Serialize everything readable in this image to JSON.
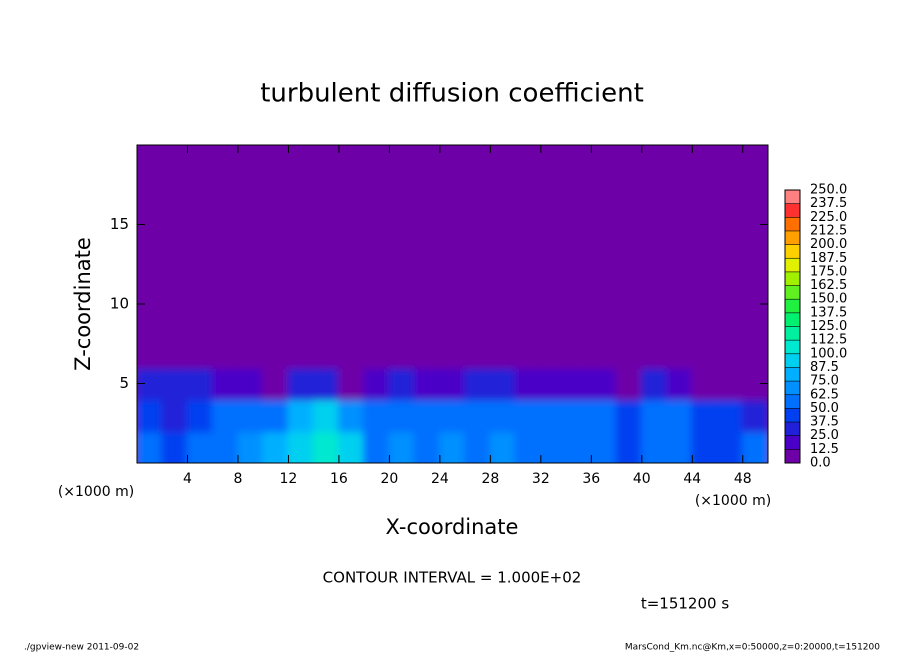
{
  "chart_data": {
    "type": "heatmap",
    "title": "turbulent diffusion coefficient",
    "xlabel": "X-coordinate",
    "ylabel": "Z-coordinate",
    "x_unit": "(×1000 m)",
    "xlim": [
      0,
      50
    ],
    "xticks": [
      4,
      8,
      12,
      16,
      20,
      24,
      28,
      32,
      36,
      40,
      44,
      48
    ],
    "ylim": [
      0,
      20
    ],
    "yticks": [
      5,
      10,
      15
    ],
    "z": [
      [
        50,
        45,
        60,
        55,
        70,
        80,
        95,
        100,
        90,
        60,
        65,
        55,
        70,
        60,
        65,
        55,
        60,
        50,
        55,
        45,
        50,
        55,
        45,
        40,
        50
      ],
      [
        40,
        35,
        45,
        50,
        60,
        55,
        75,
        90,
        70,
        50,
        55,
        55,
        60,
        55,
        60,
        55,
        55,
        50,
        55,
        45,
        50,
        50,
        45,
        40,
        35
      ],
      [
        30,
        25,
        30,
        20,
        15,
        10,
        30,
        25,
        10,
        20,
        30,
        15,
        20,
        25,
        30,
        15,
        20,
        15,
        20,
        10,
        25,
        20,
        10,
        5,
        10
      ],
      [
        0,
        0,
        0,
        10,
        0,
        0,
        0,
        0,
        0,
        0,
        0,
        5,
        0,
        0,
        0,
        0,
        0,
        0,
        0,
        0,
        0,
        0,
        0,
        0,
        0
      ],
      [
        0,
        0,
        0,
        0,
        0,
        0,
        0,
        0,
        0,
        0,
        0,
        0,
        0,
        0,
        0,
        0,
        0,
        0,
        0,
        0,
        0,
        0,
        0,
        0,
        0
      ],
      [
        0,
        0,
        0,
        0,
        0,
        0,
        0,
        0,
        0,
        0,
        0,
        0,
        0,
        0,
        0,
        0,
        0,
        0,
        0,
        0,
        0,
        0,
        0,
        0,
        0
      ],
      [
        0,
        0,
        0,
        0,
        0,
        0,
        0,
        0,
        0,
        0,
        0,
        0,
        0,
        0,
        0,
        0,
        0,
        0,
        0,
        0,
        0,
        0,
        0,
        0,
        0
      ],
      [
        0,
        0,
        0,
        0,
        0,
        0,
        0,
        0,
        0,
        0,
        0,
        0,
        0,
        0,
        0,
        0,
        0,
        0,
        0,
        0,
        0,
        0,
        0,
        0,
        0
      ],
      [
        0,
        0,
        0,
        0,
        0,
        0,
        0,
        0,
        0,
        0,
        0,
        0,
        0,
        0,
        0,
        0,
        0,
        0,
        0,
        0,
        0,
        0,
        0,
        0,
        0
      ],
      [
        0,
        0,
        0,
        0,
        0,
        0,
        0,
        0,
        0,
        0,
        0,
        0,
        0,
        0,
        0,
        0,
        0,
        0,
        0,
        0,
        0,
        0,
        0,
        0,
        0
      ]
    ],
    "levels": [
      {
        "value": 0,
        "label": "0.0"
      },
      12.5,
      {
        "value": 25,
        "label": "25.0"
      },
      37.5,
      {
        "value": 50,
        "label": "50.0"
      },
      62.5,
      {
        "value": 75,
        "label": "75.0"
      },
      87.5,
      {
        "value": 100,
        "label": "100.0"
      },
      112.5,
      {
        "value": 125,
        "label": "125.0"
      },
      137.5,
      {
        "value": 150,
        "label": "150.0"
      },
      162.5,
      {
        "value": 175,
        "label": "175.0"
      },
      187.5,
      {
        "value": 200,
        "label": "200.0"
      },
      212.5,
      {
        "value": 225,
        "label": "225.0"
      },
      237.5,
      {
        "value": 250,
        "label": "250.0"
      }
    ],
    "colors": [
      "#6e00a8",
      "#4b00c8",
      "#2020d8",
      "#0040f0",
      "#0070ff",
      "#0090ff",
      "#00b0ff",
      "#00d0f0",
      "#00e8d0",
      "#00f0a0",
      "#00f070",
      "#20f040",
      "#60f020",
      "#a0f000",
      "#e0f000",
      "#ffd000",
      "#ffa000",
      "#ff7000",
      "#ff3030",
      "#ff8080"
    ],
    "contour_interval": "CONTOUR INTERVAL = 1.000E+02",
    "time_label": "t=151200 s",
    "footer_left": "./gpview-new   2011-09-02",
    "footer_right": "MarsCond_Km.nc@Km,x=0:50000,z=0:20000,t=151200"
  }
}
